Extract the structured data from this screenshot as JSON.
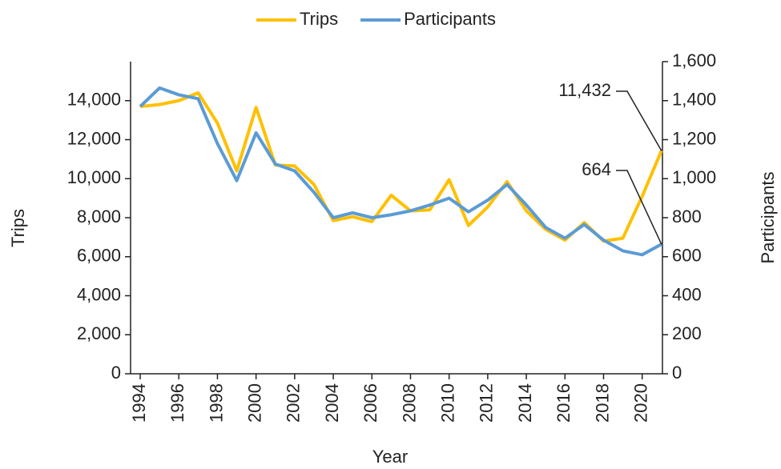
{
  "chart_data": {
    "type": "line",
    "x_label": "Year",
    "y_label": "Trips",
    "y2_label": "Participants",
    "x": [
      1994,
      1995,
      1996,
      1997,
      1998,
      1999,
      2000,
      2001,
      2002,
      2003,
      2004,
      2005,
      2006,
      2007,
      2008,
      2009,
      2010,
      2011,
      2012,
      2013,
      2014,
      2015,
      2016,
      2017,
      2018,
      2019,
      2020,
      2021
    ],
    "xlim": [
      1993.5,
      2021.05
    ],
    "xticks": [
      1994,
      1996,
      1998,
      2000,
      2002,
      2004,
      2006,
      2008,
      2010,
      2012,
      2014,
      2016,
      2018,
      2020
    ],
    "ylim": [
      0,
      16000
    ],
    "yticks": [
      0,
      {
        "value": 2000,
        "label": "2,000"
      },
      {
        "value": 4000,
        "label": "4,000"
      },
      {
        "value": 6000,
        "label": "6,000"
      },
      {
        "value": 8000,
        "label": "8,000"
      },
      {
        "value": 10000,
        "label": "10,000"
      },
      {
        "value": 12000,
        "label": "12,000"
      },
      {
        "value": 14000,
        "label": "14,000"
      }
    ],
    "y2lim": [
      0,
      1600
    ],
    "y2ticks": [
      0,
      200,
      400,
      600,
      800,
      {
        "value": 1000,
        "label": "1,000"
      },
      {
        "value": 1200,
        "label": "1,200"
      },
      {
        "value": 1400,
        "label": "1,400"
      },
      {
        "value": 1600,
        "label": "1,600"
      }
    ],
    "legend": "top",
    "series": [
      {
        "name": "Trips",
        "color": "#FFC000",
        "values": [
          13700,
          13800,
          14000,
          14400,
          12850,
          10400,
          13650,
          10700,
          10650,
          9700,
          7850,
          8050,
          7800,
          9150,
          8350,
          8400,
          9950,
          7600,
          8550,
          9850,
          8350,
          7400,
          6850,
          7750,
          6800,
          6950,
          9100,
          11432
        ],
        "value_labels": [
          null,
          null,
          null,
          null,
          null,
          null,
          null,
          null,
          null,
          null,
          null,
          null,
          null,
          null,
          null,
          null,
          null,
          null,
          null,
          null,
          null,
          null,
          null,
          null,
          null,
          null,
          null,
          "11,432"
        ]
      },
      {
        "name": "Participants",
        "color": "#5B9BD5",
        "axis": "y2",
        "values": [
          1370,
          1465,
          1430,
          1410,
          1180,
          990,
          1235,
          1075,
          1040,
          930,
          800,
          825,
          800,
          815,
          835,
          865,
          900,
          830,
          890,
          970,
          865,
          750,
          695,
          765,
          685,
          630,
          610,
          664
        ],
        "value_labels": [
          null,
          null,
          null,
          null,
          null,
          null,
          null,
          null,
          null,
          null,
          null,
          null,
          null,
          null,
          null,
          null,
          null,
          null,
          null,
          null,
          null,
          null,
          null,
          null,
          null,
          null,
          null,
          "664"
        ]
      }
    ]
  }
}
